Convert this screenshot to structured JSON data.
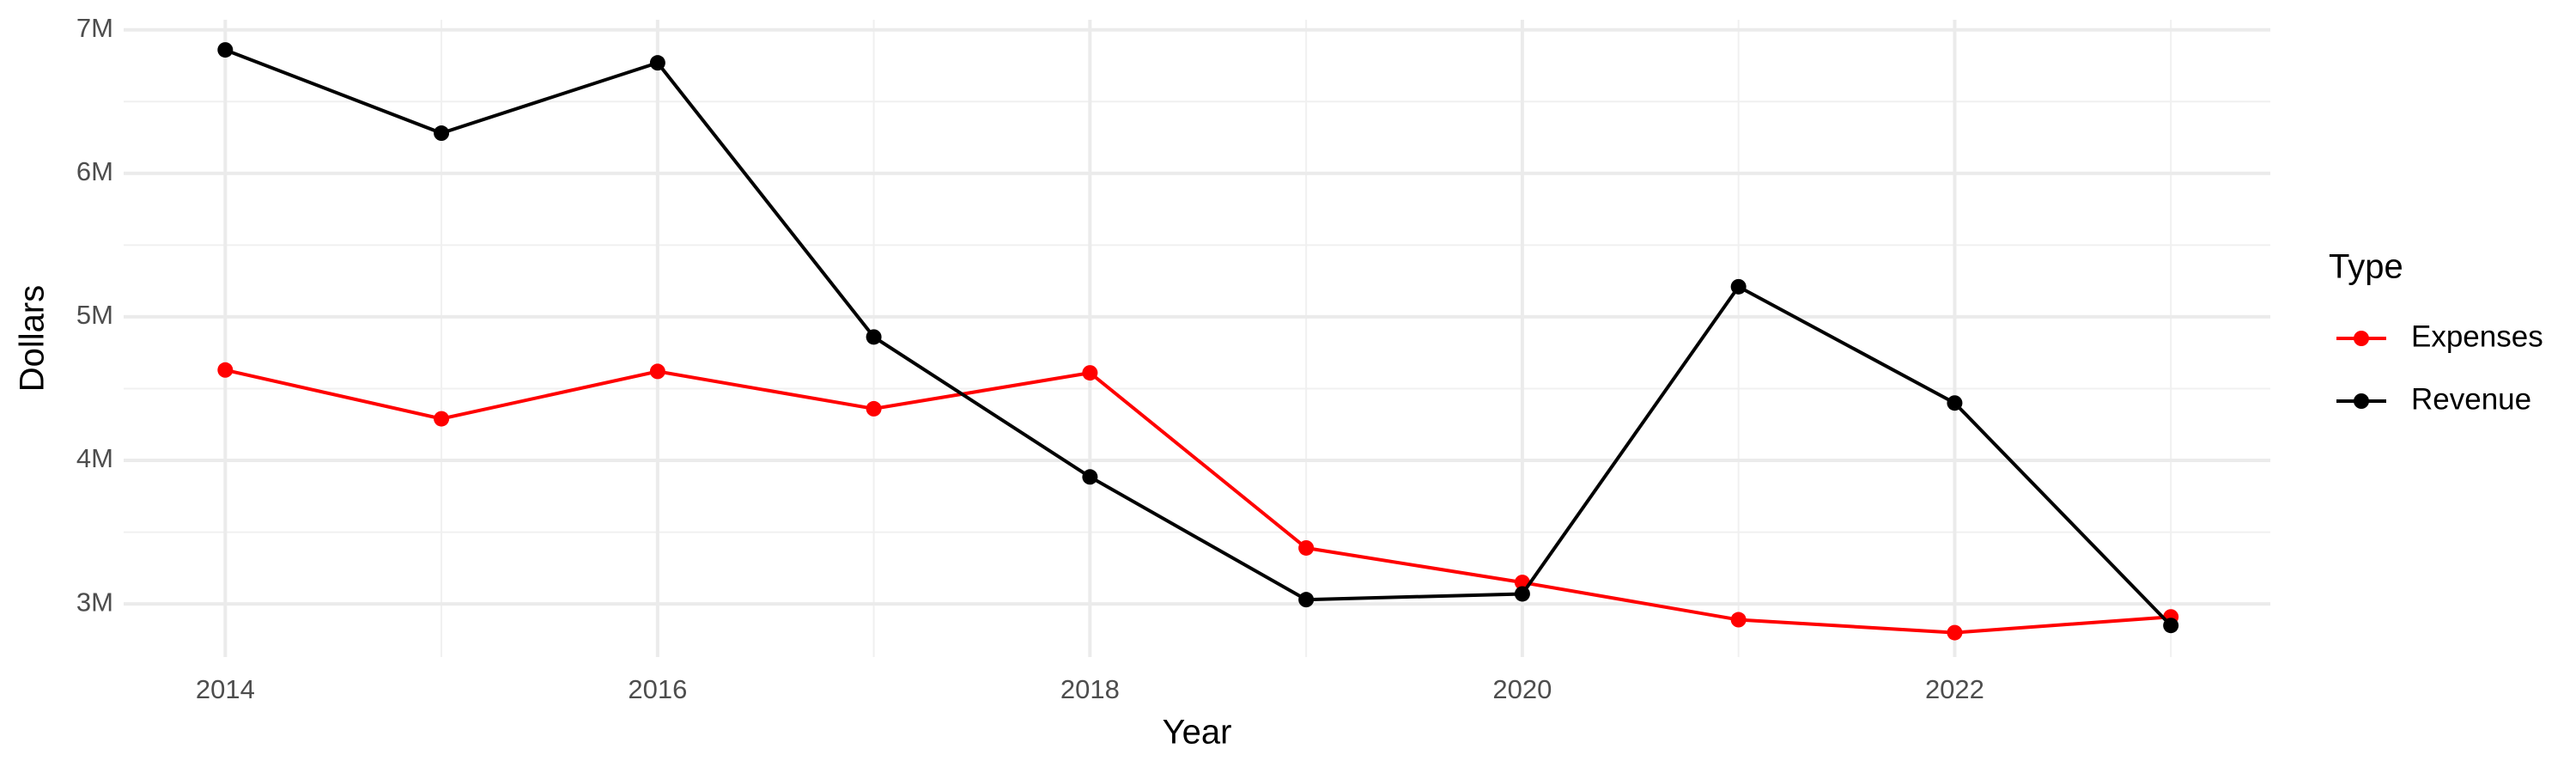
{
  "chart_data": {
    "type": "line",
    "x_label": "Year",
    "y_label": "Dollars",
    "legend_title": "Type",
    "legend_position": "right",
    "x": [
      2014,
      2015,
      2016,
      2017,
      2018,
      2019,
      2020,
      2021,
      2022,
      2023
    ],
    "series": [
      {
        "name": "Expenses",
        "color": "#ff0000",
        "values": [
          4630000,
          4290000,
          4620000,
          4360000,
          4610000,
          3390000,
          3150000,
          2890000,
          2800000,
          2910000
        ]
      },
      {
        "name": "Revenue",
        "color": "#000000",
        "values": [
          6860000,
          6280000,
          6770000,
          4860000,
          3885000,
          3030000,
          3070000,
          5210000,
          4400000,
          2850000
        ]
      }
    ],
    "xlim": [
      2013.53,
      2023.46
    ],
    "xticks": [
      2014,
      2016,
      2018,
      2020,
      2022
    ],
    "ylim": [
      2630000,
      7070000
    ],
    "yticks": [
      {
        "value": 3000000,
        "label": "3M"
      },
      {
        "value": 4000000,
        "label": "4M"
      },
      {
        "value": 5000000,
        "label": "5M"
      },
      {
        "value": 6000000,
        "label": "6M"
      },
      {
        "value": 7000000,
        "label": "7M"
      }
    ],
    "grid": true
  }
}
